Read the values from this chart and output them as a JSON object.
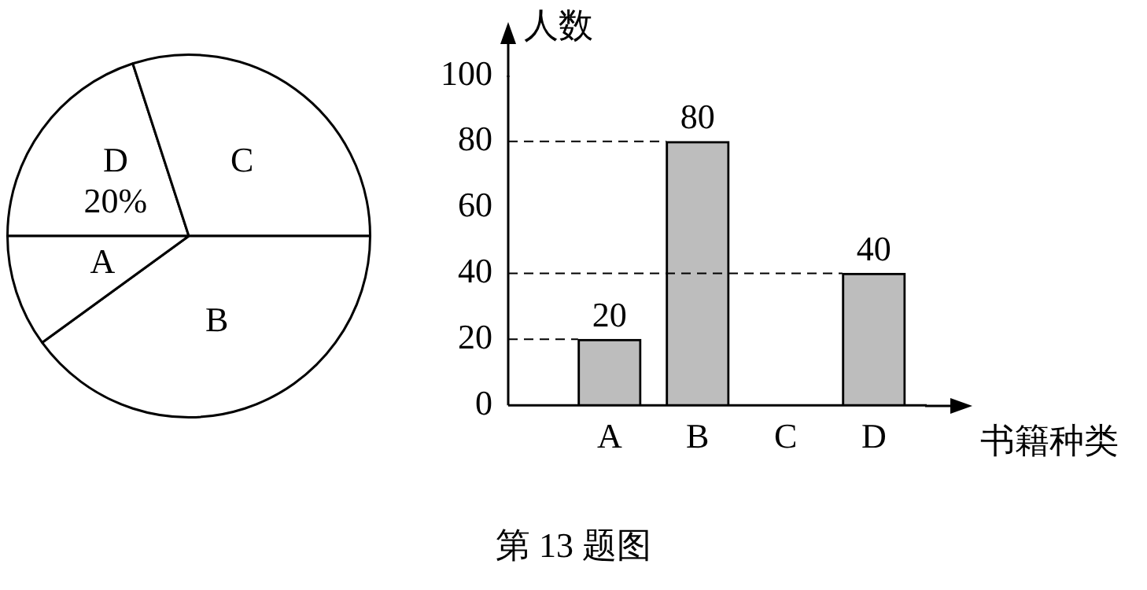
{
  "chart_data": [
    {
      "type": "pie",
      "categories": [
        "D",
        "C",
        "B",
        "A"
      ],
      "values": [
        20,
        30,
        40,
        10
      ],
      "colors": [
        "#ffffff",
        "#ffffff",
        "#ffffff",
        "#ffffff"
      ],
      "value_labels": [
        "20%",
        null,
        null,
        null
      ]
    },
    {
      "type": "bar",
      "categories": [
        "A",
        "B",
        "C",
        "D"
      ],
      "values": [
        20,
        80,
        null,
        40
      ],
      "color": "#bdbdbd",
      "xlabel": "书籍种类",
      "ylabel": "人数",
      "ylim": [
        0,
        100
      ],
      "yticks": [
        0,
        20,
        40,
        60,
        80,
        100
      ],
      "data_labels": true,
      "ref_lines": [
        {
          "axis": "y",
          "value": 20,
          "line_style": "dashed"
        },
        {
          "axis": "y",
          "value": 80,
          "line_style": "dashed"
        },
        {
          "axis": "y",
          "value": 40,
          "line_style": "dashed"
        }
      ],
      "annotations": [
        "第 13 题图"
      ]
    }
  ]
}
